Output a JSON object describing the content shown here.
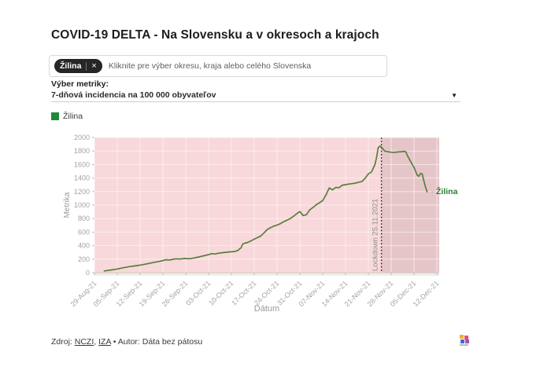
{
  "header": {
    "title": "COVID-19 DELTA - Na Slovensku a v okresoch a krajoch"
  },
  "search": {
    "chip": {
      "label": "Žilina",
      "remove_icon": "×"
    },
    "placeholder": "Kliknite pre výber okresu, kraja alebo celého Slovenska"
  },
  "metric_selector": {
    "label": "Výber metriky:",
    "value": "7-dňová incidencia na 100 000 obyvateľov",
    "caret": "▼"
  },
  "legend": {
    "items": [
      {
        "label": "Žilina",
        "color": "#1f8a3c"
      }
    ]
  },
  "chart_data": {
    "type": "line",
    "title": "",
    "xlabel": "Dátum",
    "ylabel": "Metrika",
    "ylim": [
      0,
      2000
    ],
    "y_ticks": [
      0,
      200,
      400,
      600,
      800,
      1000,
      1200,
      1400,
      1600,
      1800,
      2000
    ],
    "x_tick_labels": [
      "29-Aug-21",
      "05-Sep-21",
      "12-Sep-21",
      "19-Sep-21",
      "26-Sep-21",
      "03-Oct-21",
      "10-Oct-21",
      "17-Oct-21",
      "24-Oct-21",
      "31-Oct-21",
      "07-Nov-21",
      "14-Nov-21",
      "21-Nov-21",
      "28-Nov-21",
      "05-Dec-21",
      "12-Dec-21"
    ],
    "x_tick_days": [
      0,
      7,
      14,
      21,
      28,
      35,
      42,
      49,
      56,
      63,
      70,
      77,
      84,
      91,
      98,
      105
    ],
    "grid": true,
    "legend_position": "top-left",
    "plot_bg": "#f8d8da",
    "shaded_color": "rgba(110,64,80,0.12)",
    "baseline_strip_color": "#e6f2e6",
    "grid_color": "rgba(255,255,255,0.55)",
    "tick_color": "#a3a3a3",
    "axis_title_color": "#9a9a9a",
    "series": [
      {
        "name": "Žilina",
        "color": "#577e3d",
        "points": [
          [
            3,
            25
          ],
          [
            5,
            40
          ],
          [
            7,
            55
          ],
          [
            9,
            75
          ],
          [
            11,
            92
          ],
          [
            14,
            112
          ],
          [
            16,
            130
          ],
          [
            18,
            150
          ],
          [
            20,
            168
          ],
          [
            22,
            192
          ],
          [
            23,
            187
          ],
          [
            24,
            198
          ],
          [
            25,
            206
          ],
          [
            26,
            201
          ],
          [
            27,
            207
          ],
          [
            28,
            211
          ],
          [
            29,
            206
          ],
          [
            30,
            213
          ],
          [
            32,
            233
          ],
          [
            34,
            256
          ],
          [
            35,
            267
          ],
          [
            36,
            283
          ],
          [
            37,
            276
          ],
          [
            38,
            288
          ],
          [
            40,
            301
          ],
          [
            42,
            309
          ],
          [
            43,
            313
          ],
          [
            44,
            330
          ],
          [
            45,
            372
          ],
          [
            45.5,
            425
          ],
          [
            46,
            436
          ],
          [
            47,
            448
          ],
          [
            49,
            495
          ],
          [
            50,
            520
          ],
          [
            51,
            543
          ],
          [
            52,
            590
          ],
          [
            53,
            640
          ],
          [
            54,
            665
          ],
          [
            55,
            690
          ],
          [
            56,
            705
          ],
          [
            57,
            725
          ],
          [
            58,
            755
          ],
          [
            59,
            775
          ],
          [
            60,
            800
          ],
          [
            61,
            832
          ],
          [
            62,
            872
          ],
          [
            63,
            905
          ],
          [
            64,
            845
          ],
          [
            65,
            858
          ],
          [
            66,
            928
          ],
          [
            67,
            965
          ],
          [
            68,
            1005
          ],
          [
            69,
            1035
          ],
          [
            70,
            1068
          ],
          [
            71,
            1150
          ],
          [
            72,
            1255
          ],
          [
            73,
            1225
          ],
          [
            74,
            1262
          ],
          [
            75,
            1258
          ],
          [
            76,
            1295
          ],
          [
            77,
            1302
          ],
          [
            78,
            1312
          ],
          [
            79,
            1318
          ],
          [
            80,
            1326
          ],
          [
            81,
            1338
          ],
          [
            82,
            1348
          ],
          [
            83,
            1398
          ],
          [
            84,
            1462
          ],
          [
            85,
            1492
          ],
          [
            86,
            1600
          ],
          [
            86.5,
            1705
          ],
          [
            87,
            1848
          ],
          [
            87.5,
            1872
          ],
          [
            88,
            1858
          ],
          [
            88.5,
            1828
          ],
          [
            89,
            1800
          ],
          [
            90,
            1790
          ],
          [
            91,
            1783
          ],
          [
            92,
            1780
          ],
          [
            93,
            1786
          ],
          [
            94,
            1790
          ],
          [
            95,
            1796
          ],
          [
            95.5,
            1788
          ],
          [
            96,
            1730
          ],
          [
            97,
            1640
          ],
          [
            98,
            1558
          ],
          [
            98.5,
            1498
          ],
          [
            99,
            1442
          ],
          [
            99.5,
            1428
          ],
          [
            100,
            1470
          ],
          [
            100.5,
            1460
          ],
          [
            101,
            1362
          ],
          [
            101.5,
            1272
          ],
          [
            102,
            1195
          ]
        ]
      }
    ],
    "annotations": {
      "lockdown": {
        "label": "Lockdown 25.11.2021",
        "day": 88,
        "line_color": "#1a1a1a",
        "text_color": "#8f8f8f"
      },
      "shaded_region": {
        "from_day": 88
      },
      "end_label": {
        "dash": "- ",
        "text": "Žilina",
        "color": "#2e7d32",
        "dash_color": "#9aa58f"
      }
    }
  },
  "footer": {
    "zdroj": "Zdroj: ",
    "link_nczi": "NCZI",
    "sep": ", ",
    "link_iza": "IZA",
    "autor": " • Autor: Dáta bez pátosu",
    "logo_colors": [
      "#f5a73b",
      "#e8506e",
      "#3f6ad8",
      "#9b59b6"
    ]
  }
}
